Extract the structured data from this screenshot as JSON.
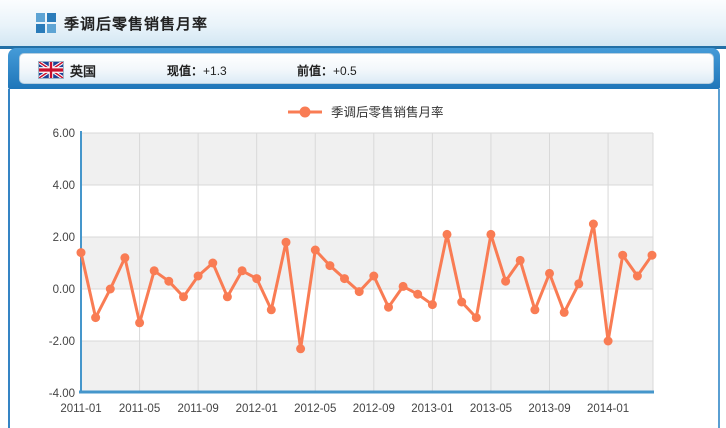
{
  "header": {
    "title": "季调后零售销售月率"
  },
  "info_bar": {
    "country": "英国",
    "flag": "uk-flag",
    "current_label": "现值：",
    "current_value": "+1.3",
    "previous_label": "前值：",
    "previous_value": "+0.5"
  },
  "chart_data": {
    "type": "line",
    "legend": "季调后零售销售月率",
    "x": [
      "2011-01",
      "2011-02",
      "2011-03",
      "2011-04",
      "2011-05",
      "2011-06",
      "2011-07",
      "2011-08",
      "2011-09",
      "2011-10",
      "2011-11",
      "2011-12",
      "2012-01",
      "2012-02",
      "2012-03",
      "2012-04",
      "2012-05",
      "2012-06",
      "2012-07",
      "2012-08",
      "2012-09",
      "2012-10",
      "2012-11",
      "2012-12",
      "2013-01",
      "2013-02",
      "2013-03",
      "2013-04",
      "2013-05",
      "2013-06",
      "2013-07",
      "2013-08",
      "2013-09",
      "2013-10",
      "2013-11",
      "2013-12",
      "2014-01",
      "2014-02",
      "2014-03",
      "2014-04"
    ],
    "values": [
      1.4,
      -1.1,
      0.0,
      1.2,
      -1.3,
      0.7,
      0.3,
      -0.3,
      0.5,
      1.0,
      -0.3,
      0.7,
      0.4,
      -0.8,
      1.8,
      -2.3,
      1.5,
      0.9,
      0.4,
      -0.1,
      0.5,
      -0.7,
      0.1,
      -0.2,
      -0.6,
      2.1,
      -0.5,
      -1.1,
      2.1,
      0.3,
      1.1,
      -0.8,
      0.6,
      -0.9,
      0.2,
      2.5,
      -2.0,
      1.3,
      0.5,
      1.3
    ],
    "x_tick_labels": [
      "2011-01",
      "2011-05",
      "2011-09",
      "2012-01",
      "2012-05",
      "2012-09",
      "2013-01",
      "2013-05",
      "2013-09",
      "2014-01"
    ],
    "x_tick_every": 4,
    "y_tick_labels": [
      "6.00",
      "4.00",
      "2.00",
      "0.00",
      "-2.00",
      "-4.00"
    ],
    "y_tick_values": [
      6,
      4,
      2,
      0,
      -2,
      -4
    ],
    "ylim": [
      -4,
      6
    ],
    "legend_position": "top-center",
    "grid": true,
    "line_color": "#f97c54",
    "band_fill": "#f0f0f0",
    "grid_color": "#d9d9d9",
    "axis_color": "#4596cb",
    "tick_text_color": "#444444"
  }
}
